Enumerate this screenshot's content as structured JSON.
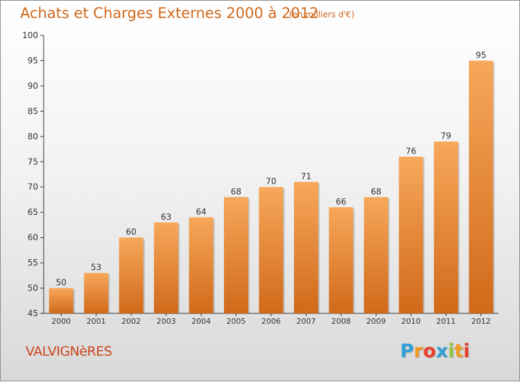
{
  "title": "Achats et Charges Externes 2000 à 2012",
  "subtitle": "(en milliers d'€)",
  "place": "VALVIGNèRES",
  "logo": {
    "letters": [
      "P",
      "r",
      "o",
      "x",
      "i",
      "t",
      "i"
    ],
    "colors": [
      "#2f9fd8",
      "#f39a1e",
      "#e8402a",
      "#2f9fd8",
      "#8cc63f",
      "#f39a1e",
      "#e8402a"
    ]
  },
  "colors": {
    "bar_top": "#f7a85a",
    "bar_bottom": "#d1691a",
    "title": "#d0681b",
    "place": "#c9451a"
  },
  "chart_data": {
    "type": "bar",
    "categories": [
      "2000",
      "2001",
      "2002",
      "2003",
      "2004",
      "2005",
      "2006",
      "2007",
      "2008",
      "2009",
      "2010",
      "2011",
      "2012"
    ],
    "values": [
      50,
      53,
      60,
      63,
      64,
      68,
      70,
      71,
      66,
      68,
      76,
      79,
      95
    ],
    "data_labels": [
      "50",
      "53",
      "60",
      "63",
      "64",
      "68",
      "70",
      "71",
      "66",
      "68",
      "76",
      "79",
      "95"
    ],
    "ylim": [
      45,
      100
    ],
    "yticks": [
      45,
      50,
      55,
      60,
      65,
      70,
      75,
      80,
      85,
      90,
      95,
      100
    ],
    "ytick_labels": [
      "45",
      "50",
      "55",
      "60",
      "65",
      "70",
      "75",
      "80",
      "85",
      "90",
      "95",
      "100"
    ],
    "grid": false
  }
}
